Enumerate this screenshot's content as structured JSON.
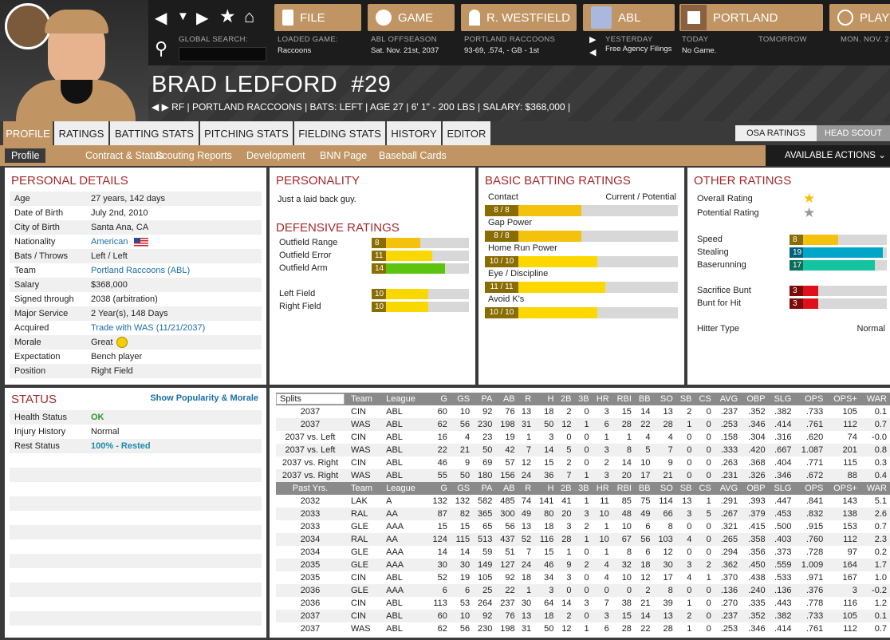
{
  "nav": {
    "buttons": [
      {
        "label": "FILE",
        "icon": "file-icon"
      },
      {
        "label": "GAME",
        "icon": "globe-icon"
      },
      {
        "label": "R. WESTFIELD",
        "icon": "home-icon"
      },
      {
        "label": "ABL",
        "icon": "league-logo-icon"
      },
      {
        "label": "PORTLAND",
        "icon": "team-logo-icon"
      },
      {
        "label": "PLAY",
        "icon": "baseball-icon"
      }
    ],
    "global_search_label": "GLOBAL SEARCH:",
    "loaded_game_label": "LOADED GAME:",
    "loaded_game": "Raccoons",
    "league_status_label": "ABL OFFSEASON",
    "date": "Sat. Nov. 21st, 2037",
    "team_label": "PORTLAND RACCOONS",
    "team_record": "93-69, .574, - GB - 1st",
    "yesterday": "YESTERDAY",
    "yesterday_value": "Free Agency Filings",
    "today": "TODAY",
    "today_value": "No Game.",
    "tomorrow": "TOMORROW",
    "next": "MON. NOV. 2"
  },
  "player": {
    "name": "BRAD LEDFORD",
    "number": "#29",
    "info": "RF | PORTLAND RACCOONS  |  BATS: LEFT  |  AGE 27  |  6' 1\" - 200 LBS  |  SALARY: $368,000  |"
  },
  "tabs": [
    "PROFILE",
    "RATINGS",
    "BATTING STATS",
    "PITCHING STATS",
    "FIELDING STATS",
    "HISTORY",
    "EDITOR"
  ],
  "toggle": [
    "OSA RATINGS",
    "HEAD SCOUT"
  ],
  "subtabs": [
    "Profile",
    "Contract & Status",
    "Scouting Reports",
    "Development",
    "BNN Page",
    "Baseball Cards"
  ],
  "available_actions": "AVAILABLE ACTIONS",
  "personal": {
    "title": "PERSONAL DETAILS",
    "rows": [
      [
        "Age",
        "27 years, 142 days"
      ],
      [
        "Date of Birth",
        "July 2nd, 2010"
      ],
      [
        "City of Birth",
        "Santa Ana, CA"
      ],
      [
        "Nationality",
        "American"
      ],
      [
        "Bats / Throws",
        "Left / Left"
      ],
      [
        "Team",
        "Portland Raccoons (ABL)"
      ],
      [
        "Salary",
        "$368,000"
      ],
      [
        "Signed through",
        "2038 (arbitration)"
      ],
      [
        "Major Service",
        "2 Year(s), 148 Days"
      ],
      [
        "Acquired",
        "Trade with WAS (11/21/2037)"
      ],
      [
        "Morale",
        "Great"
      ],
      [
        "Expectation",
        "Bench player"
      ],
      [
        "Position",
        "Right Field"
      ]
    ]
  },
  "personality": {
    "title": "PERSONALITY",
    "text": "Just a laid back guy."
  },
  "defensive": {
    "title": "DEFENSIVE RATINGS",
    "rows": [
      {
        "label": "Outfield Range",
        "value": 8,
        "color": "#f4c20d"
      },
      {
        "label": "Outfield Error",
        "value": 11,
        "color": "#f8d800"
      },
      {
        "label": "Outfield Arm",
        "value": 14,
        "color": "#5cc40e"
      },
      {
        "label": "Left Field",
        "value": 10,
        "color": "#f8d800"
      },
      {
        "label": "Right Field",
        "value": 10,
        "color": "#f8d800"
      }
    ]
  },
  "batting": {
    "title": "BASIC BATTING RATINGS",
    "header": "Current / Potential",
    "rows": [
      {
        "label": "Contact",
        "text": "8 / 8",
        "value": 8
      },
      {
        "label": "Gap Power",
        "text": "8 / 8",
        "value": 8
      },
      {
        "label": "Home Run Power",
        "text": "10 / 10",
        "value": 10
      },
      {
        "label": "Eye / Discipline",
        "text": "11 / 11",
        "value": 11
      },
      {
        "label": "Avoid K's",
        "text": "10 / 10",
        "value": 10
      }
    ]
  },
  "other": {
    "title": "OTHER RATINGS",
    "overall": "Overall Rating",
    "potential": "Potential Rating",
    "rows": [
      {
        "label": "Speed",
        "value": 8,
        "color": "#f4c20d",
        "dark": "#8a6d00"
      },
      {
        "label": "Stealing",
        "value": 19,
        "color": "#00a6c8",
        "dark": "#00607a"
      },
      {
        "label": "Baserunning",
        "value": 17,
        "color": "#14c4a0",
        "dark": "#0a6e5a"
      },
      {
        "label": "Sacrifice Bunt",
        "value": 3,
        "color": "#e0101a",
        "dark": "#7a0a0a"
      },
      {
        "label": "Bunt for Hit",
        "value": 3,
        "color": "#e0101a",
        "dark": "#7a0a0a"
      }
    ],
    "hitter_type_label": "Hitter Type",
    "hitter_type": "Normal"
  },
  "status": {
    "title": "STATUS",
    "link": "Show Popularity & Morale",
    "rows": [
      [
        "Health Status",
        "OK"
      ],
      [
        "Injury History",
        "Normal"
      ],
      [
        "Rest Status",
        "100% - Rested"
      ]
    ]
  },
  "stats": {
    "select": "Splits",
    "cols": [
      "Team",
      "League",
      "G",
      "GS",
      "PA",
      "AB",
      "R",
      "H",
      "2B",
      "3B",
      "HR",
      "RBI",
      "BB",
      "SO",
      "SB",
      "CS",
      "AVG",
      "OBP",
      "SLG",
      "OPS",
      "OPS+",
      "WAR"
    ],
    "splits": [
      [
        "2037",
        "CIN",
        "ABL",
        "60",
        "10",
        "92",
        "76",
        "13",
        "18",
        "2",
        "0",
        "3",
        "15",
        "14",
        "13",
        "2",
        "0",
        ".237",
        ".352",
        ".382",
        ".733",
        "105",
        "0.1"
      ],
      [
        "2037",
        "WAS",
        "ABL",
        "62",
        "56",
        "230",
        "198",
        "31",
        "50",
        "12",
        "1",
        "6",
        "28",
        "22",
        "28",
        "1",
        "0",
        ".253",
        ".346",
        ".414",
        ".761",
        "112",
        "0.7"
      ],
      [
        "2037 vs. Left",
        "CIN",
        "ABL",
        "16",
        "4",
        "23",
        "19",
        "1",
        "3",
        "0",
        "0",
        "1",
        "1",
        "4",
        "4",
        "0",
        "0",
        ".158",
        ".304",
        ".316",
        ".620",
        "74",
        "-0.0"
      ],
      [
        "2037 vs. Left",
        "WAS",
        "ABL",
        "22",
        "21",
        "50",
        "42",
        "7",
        "14",
        "5",
        "0",
        "3",
        "8",
        "5",
        "7",
        "0",
        "0",
        ".333",
        ".420",
        ".667",
        "1.087",
        "201",
        "0.8"
      ],
      [
        "2037 vs. Right",
        "CIN",
        "ABL",
        "46",
        "9",
        "69",
        "57",
        "12",
        "15",
        "2",
        "0",
        "2",
        "14",
        "10",
        "9",
        "0",
        "0",
        ".263",
        ".368",
        ".404",
        ".771",
        "115",
        "0.3"
      ],
      [
        "2037 vs. Right",
        "WAS",
        "ABL",
        "55",
        "50",
        "180",
        "156",
        "24",
        "36",
        "7",
        "1",
        "3",
        "20",
        "17",
        "21",
        "0",
        "0",
        ".231",
        ".326",
        ".346",
        ".672",
        "88",
        "0.4"
      ]
    ],
    "past_label": "Past Yrs.",
    "past": [
      [
        "2032",
        "LAK",
        "A",
        "132",
        "132",
        "582",
        "485",
        "74",
        "141",
        "41",
        "1",
        "11",
        "85",
        "75",
        "114",
        "13",
        "1",
        ".291",
        ".393",
        ".447",
        ".841",
        "143",
        "5.1"
      ],
      [
        "2033",
        "RAL",
        "AA",
        "87",
        "82",
        "365",
        "300",
        "49",
        "80",
        "20",
        "3",
        "10",
        "48",
        "49",
        "66",
        "3",
        "5",
        ".267",
        ".379",
        ".453",
        ".832",
        "138",
        "2.6"
      ],
      [
        "2033",
        "GLE",
        "AAA",
        "15",
        "15",
        "65",
        "56",
        "13",
        "18",
        "3",
        "2",
        "1",
        "10",
        "6",
        "8",
        "0",
        "0",
        ".321",
        ".415",
        ".500",
        ".915",
        "153",
        "0.7"
      ],
      [
        "2034",
        "RAL",
        "AA",
        "124",
        "115",
        "513",
        "437",
        "52",
        "116",
        "28",
        "1",
        "10",
        "67",
        "56",
        "103",
        "4",
        "0",
        ".265",
        ".358",
        ".403",
        ".760",
        "112",
        "2.3"
      ],
      [
        "2034",
        "GLE",
        "AAA",
        "14",
        "14",
        "59",
        "51",
        "7",
        "15",
        "1",
        "0",
        "1",
        "8",
        "6",
        "12",
        "0",
        "0",
        ".294",
        ".356",
        ".373",
        ".728",
        "97",
        "0.2"
      ],
      [
        "2035",
        "GLE",
        "AAA",
        "30",
        "30",
        "149",
        "127",
        "24",
        "46",
        "9",
        "2",
        "4",
        "32",
        "18",
        "30",
        "3",
        "2",
        ".362",
        ".450",
        ".559",
        "1.009",
        "164",
        "1.7"
      ],
      [
        "2035",
        "CIN",
        "ABL",
        "52",
        "19",
        "105",
        "92",
        "18",
        "34",
        "3",
        "0",
        "4",
        "10",
        "12",
        "17",
        "4",
        "1",
        ".370",
        ".438",
        ".533",
        ".971",
        "167",
        "1.0"
      ],
      [
        "2036",
        "GLE",
        "AAA",
        "6",
        "6",
        "25",
        "22",
        "1",
        "3",
        "0",
        "0",
        "0",
        "0",
        "2",
        "8",
        "0",
        "0",
        ".136",
        ".240",
        ".136",
        ".376",
        "3",
        "-0.2"
      ],
      [
        "2036",
        "CIN",
        "ABL",
        "113",
        "53",
        "264",
        "237",
        "30",
        "64",
        "14",
        "3",
        "7",
        "38",
        "21",
        "39",
        "1",
        "0",
        ".270",
        ".335",
        ".443",
        ".778",
        "116",
        "1.2"
      ],
      [
        "2037",
        "CIN",
        "ABL",
        "60",
        "10",
        "92",
        "76",
        "13",
        "18",
        "2",
        "0",
        "3",
        "15",
        "14",
        "13",
        "2",
        "0",
        ".237",
        ".352",
        ".382",
        ".733",
        "105",
        "0.1"
      ],
      [
        "2037",
        "WAS",
        "ABL",
        "62",
        "56",
        "230",
        "198",
        "31",
        "50",
        "12",
        "1",
        "6",
        "28",
        "22",
        "28",
        "1",
        "0",
        ".253",
        ".346",
        ".414",
        ".761",
        "112",
        "0.7"
      ]
    ]
  }
}
